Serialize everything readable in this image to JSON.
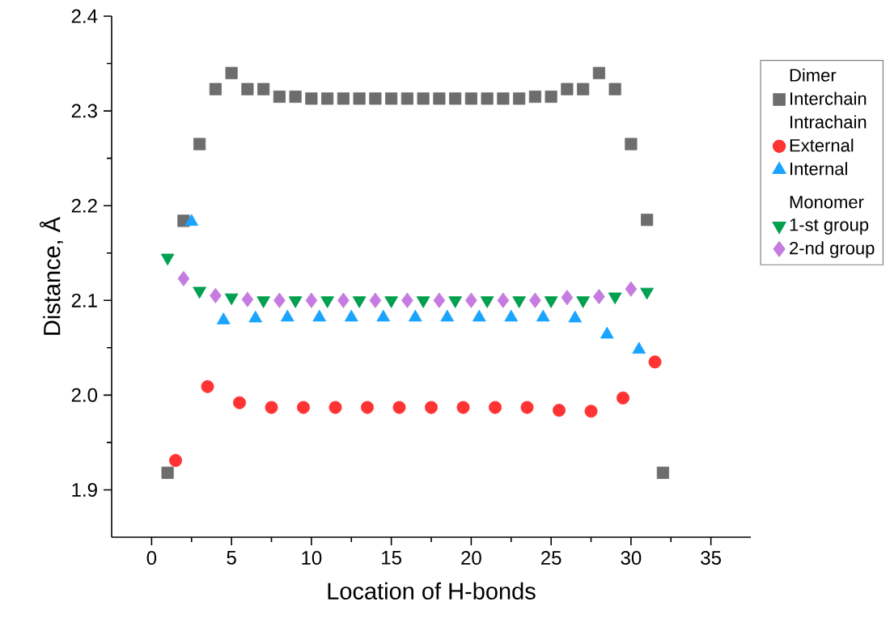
{
  "chart_data": {
    "type": "scatter",
    "xlabel": "Location of H-bonds",
    "ylabel": "Distance, Å",
    "xlim": [
      -2.5,
      37.5
    ],
    "ylim": [
      1.85,
      2.4
    ],
    "xticks": [
      0,
      5,
      10,
      15,
      20,
      25,
      30,
      35
    ],
    "yticks": [
      1.9,
      {
        "value": 2.0,
        "label": "2.0"
      },
      2.1,
      2.2,
      2.3,
      2.4
    ],
    "legend": "top right",
    "grid": false,
    "annotations": [
      "Dimer",
      "Intrachain",
      "Monomer"
    ],
    "series": [
      {
        "name": "Interchain",
        "color": "#6d6d6d",
        "marker": "square",
        "x": [
          1,
          2,
          3,
          4,
          5,
          6,
          7,
          8,
          9,
          10,
          11,
          12,
          13,
          14,
          15,
          16,
          17,
          18,
          19,
          20,
          21,
          22,
          23,
          24,
          25,
          26,
          27,
          28,
          29,
          30,
          31,
          32
        ],
        "values": [
          1.918,
          2.184,
          2.265,
          2.323,
          2.34,
          2.323,
          2.323,
          2.315,
          2.315,
          2.313,
          2.313,
          2.313,
          2.313,
          2.313,
          2.313,
          2.313,
          2.313,
          2.313,
          2.313,
          2.313,
          2.313,
          2.313,
          2.313,
          2.315,
          2.315,
          2.323,
          2.323,
          2.34,
          2.323,
          2.265,
          2.185,
          1.918
        ]
      },
      {
        "name": "External",
        "color": "#ff3333",
        "marker": "circle",
        "x": [
          1.5,
          3.5,
          5.5,
          7.5,
          9.5,
          11.5,
          13.5,
          15.5,
          17.5,
          19.5,
          21.5,
          23.5,
          25.5,
          27.5,
          29.5,
          31.5
        ],
        "values": [
          1.931,
          2.009,
          1.992,
          1.987,
          1.987,
          1.987,
          1.987,
          1.987,
          1.987,
          1.987,
          1.987,
          1.987,
          1.984,
          1.983,
          1.997,
          2.035
        ]
      },
      {
        "name": "Internal",
        "color": "#1aa3ff",
        "marker": "triangle",
        "x": [
          2.5,
          4.5,
          6.5,
          8.5,
          10.5,
          12.5,
          14.5,
          16.5,
          18.5,
          20.5,
          22.5,
          24.5,
          26.5,
          28.5,
          30.5
        ],
        "values": [
          2.183,
          2.079,
          2.081,
          2.082,
          2.082,
          2.082,
          2.082,
          2.082,
          2.082,
          2.082,
          2.082,
          2.082,
          2.081,
          2.064,
          2.048
        ]
      },
      {
        "name": "1-st group",
        "color": "#00a050",
        "marker": "triangle down",
        "x": [
          1,
          3,
          5,
          7,
          9,
          11,
          13,
          15,
          17,
          19,
          21,
          23,
          25,
          27,
          29,
          31
        ],
        "values": [
          2.145,
          2.11,
          2.103,
          2.1,
          2.1,
          2.1,
          2.1,
          2.1,
          2.1,
          2.1,
          2.1,
          2.1,
          2.1,
          2.1,
          2.104,
          2.109
        ]
      },
      {
        "name": "2-nd group",
        "color": "#c57be0",
        "marker": "diamond",
        "x": [
          2,
          4,
          6,
          8,
          10,
          12,
          14,
          16,
          18,
          20,
          22,
          24,
          26,
          28,
          30
        ],
        "values": [
          2.123,
          2.105,
          2.101,
          2.1,
          2.1,
          2.1,
          2.1,
          2.1,
          2.1,
          2.1,
          2.1,
          2.1,
          2.103,
          2.104,
          2.112
        ]
      }
    ]
  }
}
